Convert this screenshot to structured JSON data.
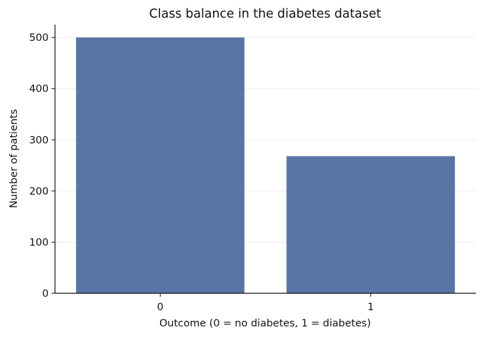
{
  "chart_data": {
    "type": "bar",
    "title": "Class balance in the diabetes dataset",
    "xlabel": "Outcome (0 = no diabetes, 1 = diabetes)",
    "ylabel": "Number of patients",
    "categories": [
      "0",
      "1"
    ],
    "values": [
      500,
      268
    ],
    "ylim": [
      0,
      525
    ],
    "yticks": [
      0,
      100,
      200,
      300,
      400,
      500
    ],
    "grid": true,
    "bar_color": "#5875a4",
    "grid_color": "#e6e6e6"
  }
}
